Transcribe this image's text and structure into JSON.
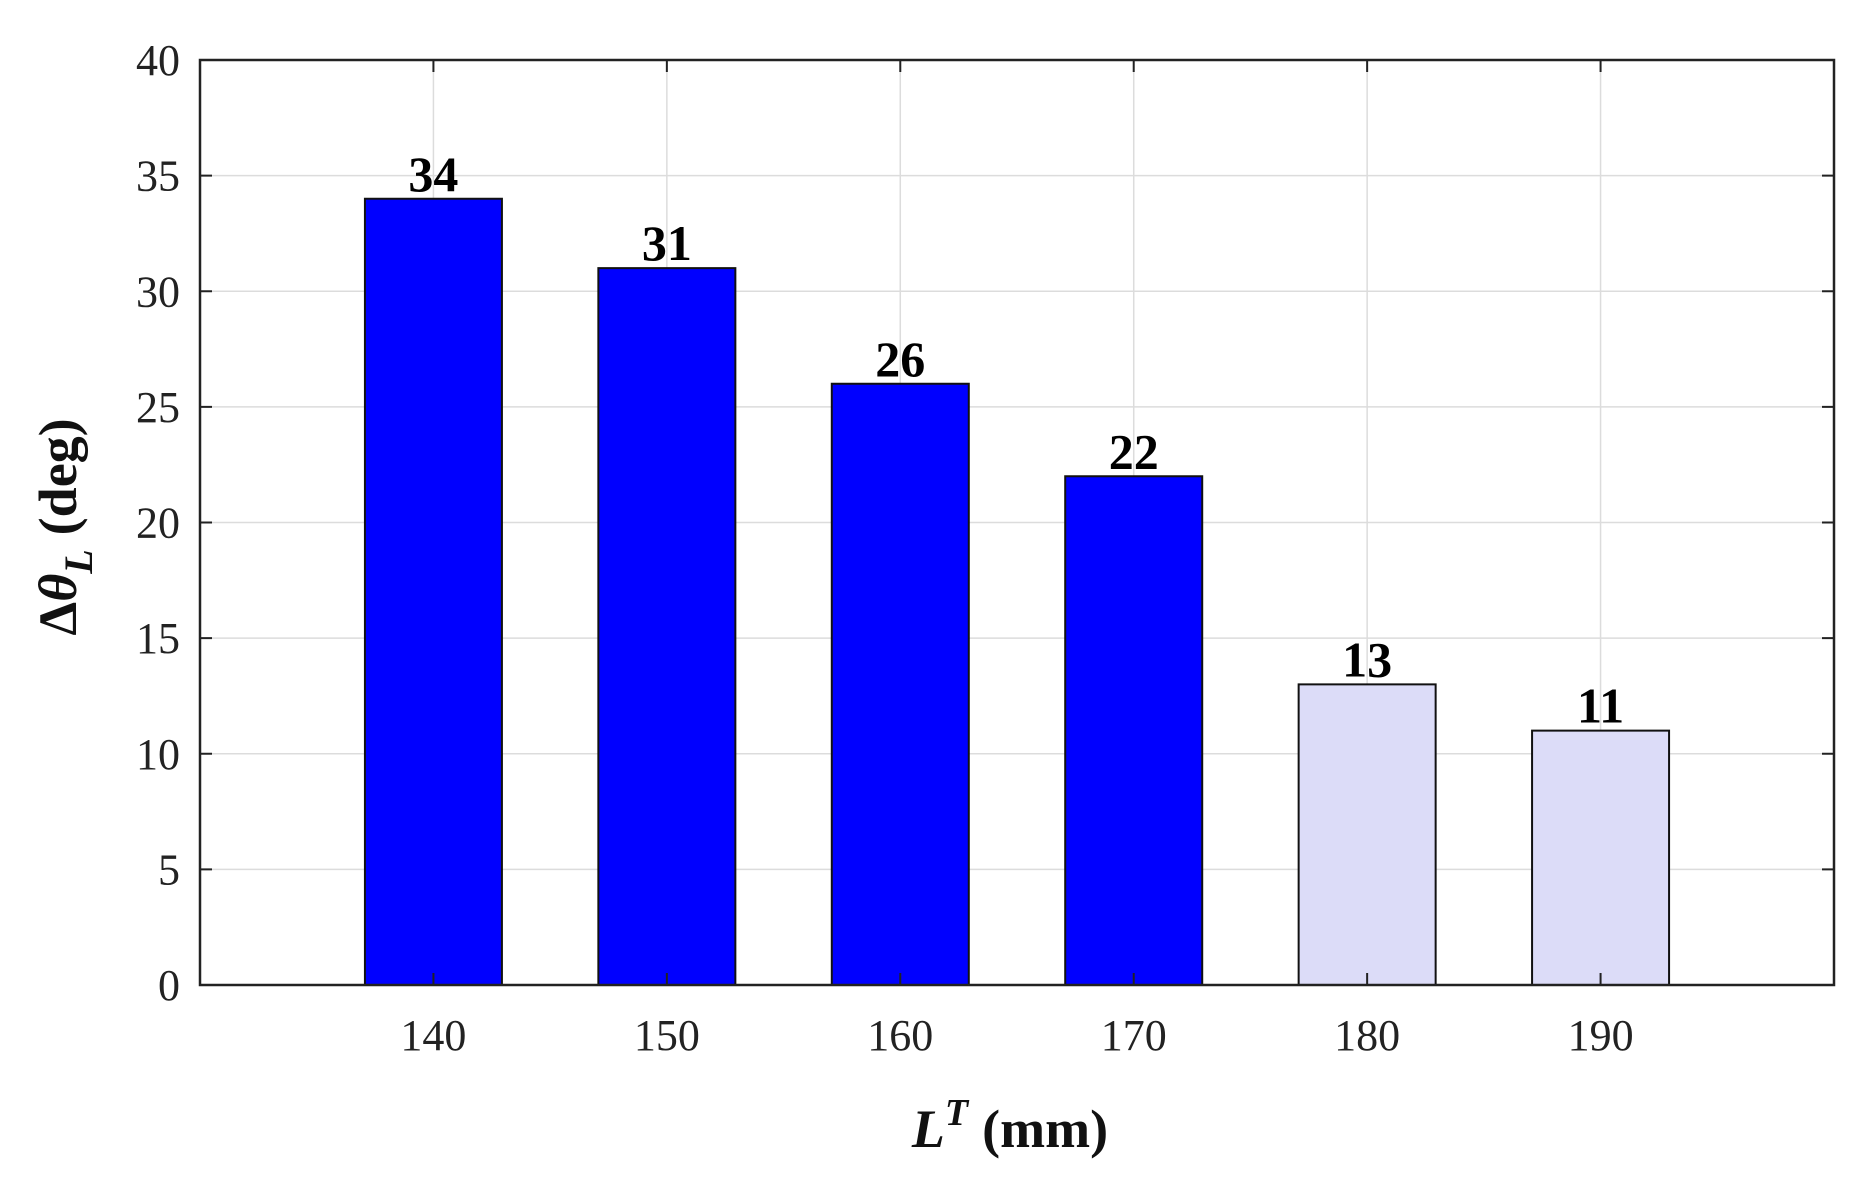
{
  "chart_data": {
    "type": "bar",
    "categories": [
      "140",
      "150",
      "160",
      "170",
      "180",
      "190"
    ],
    "values": [
      34,
      31,
      26,
      22,
      13,
      11
    ],
    "bar_colors": [
      "#0000ff",
      "#0000ff",
      "#0000ff",
      "#0000ff",
      "#dcdcf8",
      "#dcdcf8"
    ],
    "title": "",
    "xlabel": {
      "symbol": "L",
      "superscript": "T",
      "unit": "(mm)"
    },
    "ylabel": {
      "delta": "Δ",
      "symbol": "θ",
      "subscript": "L",
      "unit": "(deg)"
    },
    "xlim": [
      130,
      200
    ],
    "ylim": [
      0,
      40
    ],
    "yticks": [
      "0",
      "5",
      "10",
      "15",
      "20",
      "25",
      "30",
      "35",
      "40"
    ],
    "grid": true,
    "legend": "none"
  }
}
